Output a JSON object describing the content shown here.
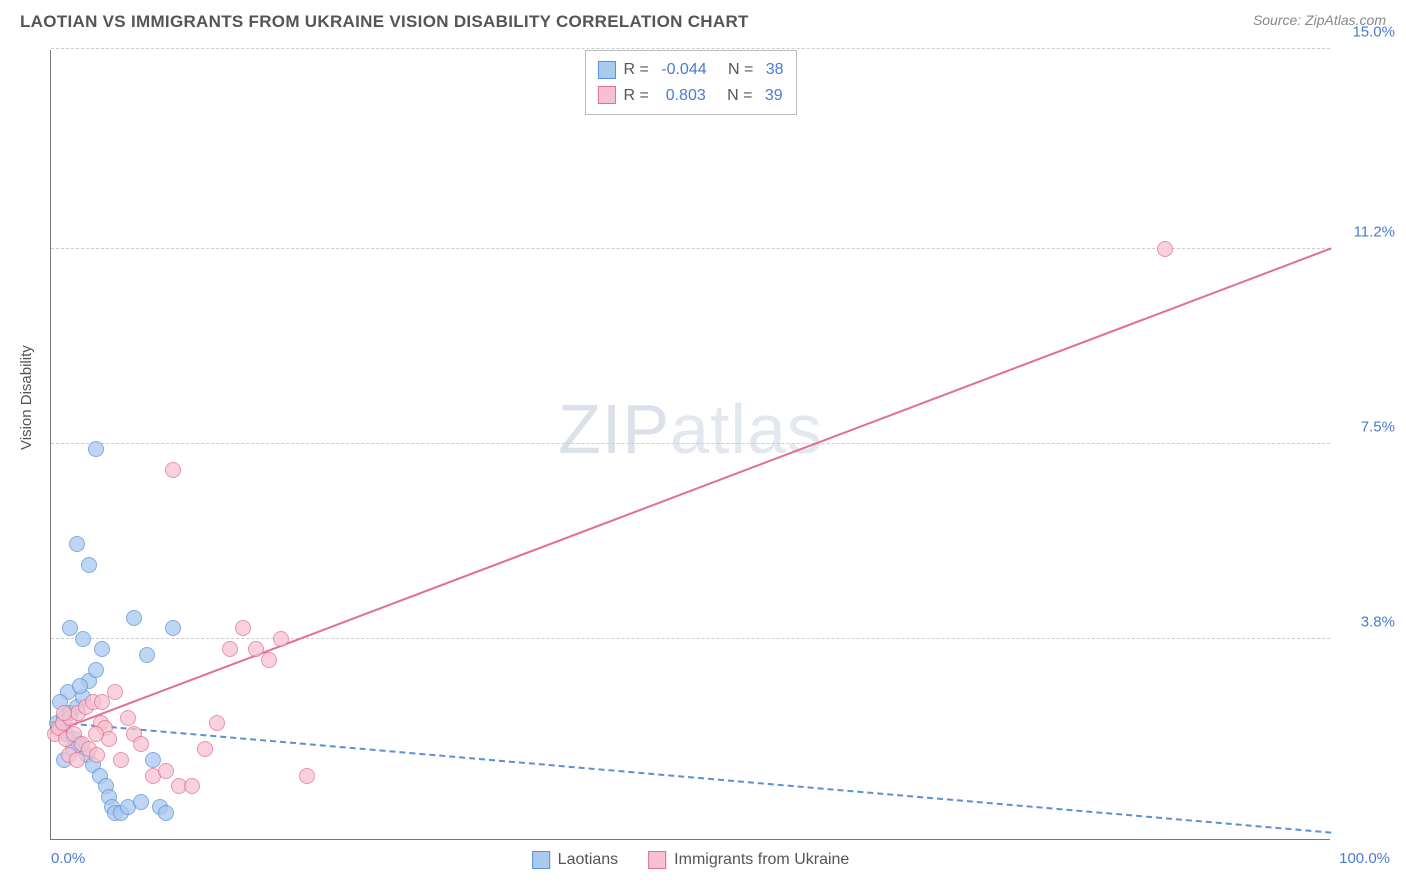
{
  "header": {
    "title": "LAOTIAN VS IMMIGRANTS FROM UKRAINE VISION DISABILITY CORRELATION CHART",
    "source_prefix": "Source: ",
    "source_name": "ZipAtlas.com"
  },
  "watermark": {
    "bold": "ZIP",
    "light": "atlas"
  },
  "axes": {
    "y_label": "Vision Disability",
    "x_min": 0,
    "x_max": 100,
    "y_min": 0,
    "y_max": 15,
    "x_ticks": [
      {
        "val": 0,
        "label": "0.0%",
        "align": "left"
      },
      {
        "val": 100,
        "label": "100.0%",
        "align": "right"
      }
    ],
    "y_ticks": [
      {
        "val": 3.8,
        "label": "3.8%"
      },
      {
        "val": 7.5,
        "label": "7.5%"
      },
      {
        "val": 11.2,
        "label": "11.2%"
      },
      {
        "val": 15.0,
        "label": "15.0%"
      }
    ],
    "grid_color": "#cccccc"
  },
  "series": [
    {
      "key": "laotians",
      "name": "Laotians",
      "fill": "#a9c9ef",
      "stroke": "#5b8fd6",
      "R_label": "R = ",
      "R": "-0.044",
      "N_label": "N = ",
      "N": "38",
      "trend": {
        "x1": 0,
        "y1": 2.2,
        "x2": 100,
        "y2": 0.1,
        "style": "dashed",
        "color": "#5b8fd6"
      },
      "points": [
        [
          0.5,
          2.2
        ],
        [
          0.8,
          2.1
        ],
        [
          1.0,
          2.3
        ],
        [
          1.2,
          2.0
        ],
        [
          1.5,
          2.4
        ],
        [
          1.8,
          1.9
        ],
        [
          2.0,
          2.5
        ],
        [
          2.2,
          1.8
        ],
        [
          2.5,
          2.7
        ],
        [
          2.8,
          1.6
        ],
        [
          3.0,
          3.0
        ],
        [
          3.3,
          1.4
        ],
        [
          3.5,
          3.2
        ],
        [
          3.8,
          1.2
        ],
        [
          4.0,
          3.6
        ],
        [
          4.3,
          1.0
        ],
        [
          4.5,
          0.8
        ],
        [
          4.8,
          0.6
        ],
        [
          5.0,
          0.5
        ],
        [
          5.5,
          0.5
        ],
        [
          6.0,
          0.6
        ],
        [
          6.5,
          4.2
        ],
        [
          7.0,
          0.7
        ],
        [
          7.5,
          3.5
        ],
        [
          8.0,
          1.5
        ],
        [
          8.5,
          0.6
        ],
        [
          9.0,
          0.5
        ],
        [
          9.5,
          4.0
        ],
        [
          2.0,
          5.6
        ],
        [
          3.0,
          5.2
        ],
        [
          1.5,
          4.0
        ],
        [
          2.5,
          3.8
        ],
        [
          3.5,
          7.4
        ],
        [
          1.0,
          1.5
        ],
        [
          1.3,
          2.8
        ],
        [
          1.7,
          1.7
        ],
        [
          2.3,
          2.9
        ],
        [
          0.7,
          2.6
        ]
      ]
    },
    {
      "key": "ukraine",
      "name": "Immigrants from Ukraine",
      "fill": "#f6c2d1",
      "stroke": "#e06f91",
      "R_label": "R = ",
      "R": " 0.803",
      "N_label": "N = ",
      "N": "39",
      "trend": {
        "x1": 0,
        "y1": 2.0,
        "x2": 100,
        "y2": 11.2,
        "style": "solid",
        "color": "#e06f91"
      },
      "points": [
        [
          0.3,
          2.0
        ],
        [
          0.6,
          2.1
        ],
        [
          0.9,
          2.2
        ],
        [
          1.2,
          1.9
        ],
        [
          1.5,
          2.3
        ],
        [
          1.8,
          2.0
        ],
        [
          2.1,
          2.4
        ],
        [
          2.4,
          1.8
        ],
        [
          2.7,
          2.5
        ],
        [
          3.0,
          1.7
        ],
        [
          3.3,
          2.6
        ],
        [
          3.6,
          1.6
        ],
        [
          3.9,
          2.2
        ],
        [
          4.2,
          2.1
        ],
        [
          4.5,
          1.9
        ],
        [
          5.0,
          2.8
        ],
        [
          5.5,
          1.5
        ],
        [
          6.0,
          2.3
        ],
        [
          6.5,
          2.0
        ],
        [
          7.0,
          1.8
        ],
        [
          8.0,
          1.2
        ],
        [
          9.0,
          1.3
        ],
        [
          10.0,
          1.0
        ],
        [
          11.0,
          1.0
        ],
        [
          12.0,
          1.7
        ],
        [
          13.0,
          2.2
        ],
        [
          14.0,
          3.6
        ],
        [
          15.0,
          4.0
        ],
        [
          16.0,
          3.6
        ],
        [
          17.0,
          3.4
        ],
        [
          18.0,
          3.8
        ],
        [
          20.0,
          1.2
        ],
        [
          9.5,
          7.0
        ],
        [
          87.0,
          11.2
        ],
        [
          1.0,
          2.4
        ],
        [
          1.4,
          1.6
        ],
        [
          2.0,
          1.5
        ],
        [
          3.5,
          2.0
        ],
        [
          4.0,
          2.6
        ]
      ]
    }
  ],
  "colors": {
    "title": "#555555",
    "tick_text": "#4a7bd0",
    "axis_line": "#777777",
    "background": "#ffffff"
  }
}
